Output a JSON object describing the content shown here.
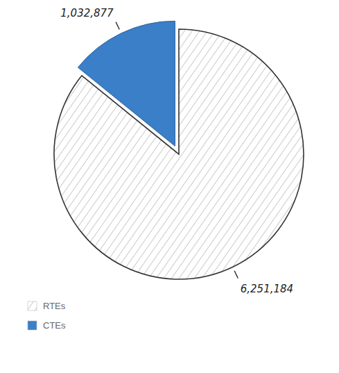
{
  "chart_data": {
    "type": "pie",
    "categories": [
      "RTEs",
      "CTEs"
    ],
    "values": [
      6251184,
      1032877
    ],
    "value_labels": [
      "6,251,184",
      "1,032,877"
    ],
    "colors": [
      "#ffffff",
      "#3b7fc9"
    ],
    "data_labels": true,
    "legend": "bottom-left"
  }
}
